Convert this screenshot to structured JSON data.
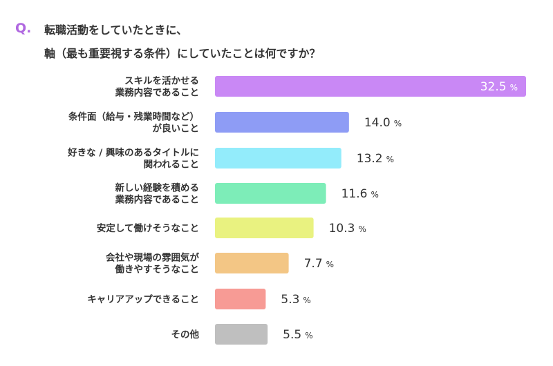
{
  "header": {
    "q_mark": "Q.",
    "title_line1": "転職活動をしていたときに、",
    "title_line2": "軸（最も重要視する条件）にしていたことは何ですか？"
  },
  "chart_data": {
    "type": "bar",
    "orientation": "horizontal",
    "title": "転職活動をしていたときに、軸（最も重要視する条件）にしていたことは何ですか？",
    "unit": "%",
    "categories": [
      [
        "スキルを活かせる",
        "業務内容であること"
      ],
      [
        "条件面（給与・残業時間など）",
        "が良いこと"
      ],
      [
        "好きな / 興味のあるタイトルに",
        "関われること"
      ],
      [
        "新しい経験を積める",
        "業務内容であること"
      ],
      [
        "安定して働けそうなこと"
      ],
      [
        "会社や現場の雰囲気が",
        "働きやすそうなこと"
      ],
      [
        "キャリアアップできること"
      ],
      [
        "その他"
      ]
    ],
    "values": [
      32.5,
      14.0,
      13.2,
      11.6,
      10.3,
      7.7,
      5.3,
      5.5
    ],
    "value_labels": [
      "32.5",
      "14.0",
      "13.2",
      "11.6",
      "10.3",
      "7.7",
      "5.3",
      "5.5"
    ],
    "colors": [
      "#c988f5",
      "#8e9cf5",
      "#93ecfb",
      "#7dedb8",
      "#e9f280",
      "#f3c685",
      "#f79b95",
      "#bfbfbf"
    ],
    "xlim": [
      0,
      32.5
    ],
    "grid": false,
    "legend": "none"
  }
}
